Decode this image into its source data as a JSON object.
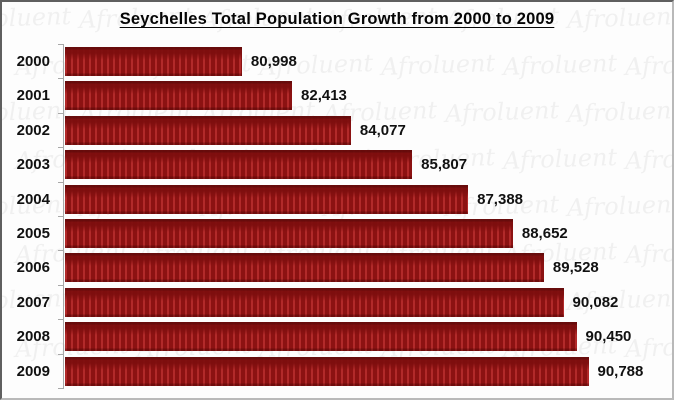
{
  "title": "Seychelles Total Population Growth from 2000 to 2009",
  "watermark": {
    "text": "Afroluent"
  },
  "colors": {
    "bar_dark": "#8c1212",
    "bar_stripe_light": "#b22a2a",
    "axis": "#a8a8a8",
    "text": "#111111",
    "border_dark": "#5f5f5f",
    "border_light": "#b9b9b9"
  },
  "chart_data": {
    "type": "bar",
    "orientation": "horizontal",
    "title": "Seychelles Total Population Growth from 2000 to 2009",
    "categories": [
      "2000",
      "2001",
      "2002",
      "2003",
      "2004",
      "2005",
      "2006",
      "2007",
      "2008",
      "2009"
    ],
    "values": [
      80998,
      82413,
      84077,
      85807,
      87388,
      88652,
      89528,
      90082,
      90450,
      90788
    ],
    "value_labels": [
      "80,998",
      "82,413",
      "84,077",
      "85,807",
      "87,388",
      "88,652",
      "89,528",
      "90,082",
      "90,450",
      "90,788"
    ],
    "xlabel": "",
    "ylabel": "",
    "xlim": [
      76000,
      91000
    ],
    "grid": false,
    "legend": false,
    "bar_labels_position": "outside-end"
  }
}
